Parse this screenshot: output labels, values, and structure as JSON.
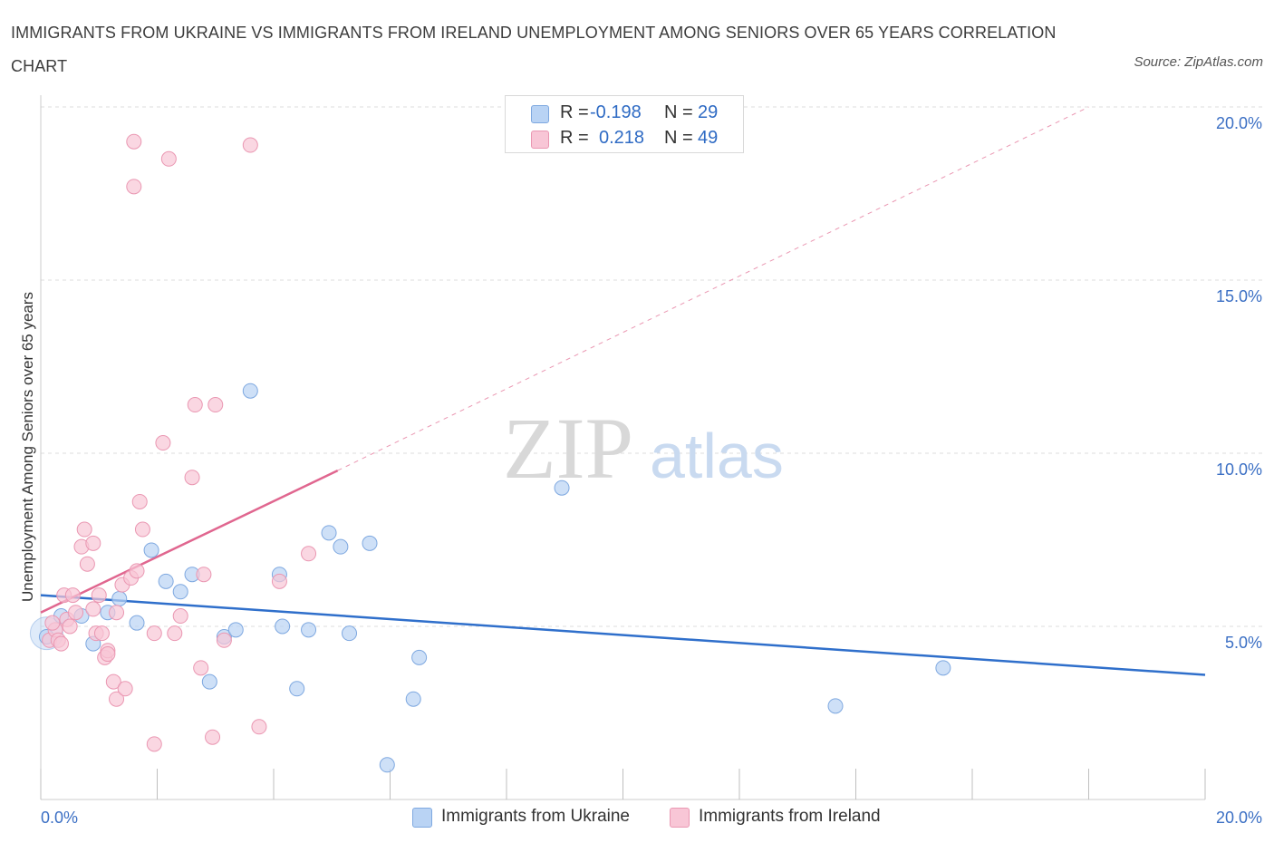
{
  "title": "IMMIGRANTS FROM UKRAINE VS IMMIGRANTS FROM IRELAND UNEMPLOYMENT AMONG SENIORS OVER 65 YEARS CORRELATION CHART",
  "source": "Source: ZipAtlas.com",
  "watermark": {
    "zip": "ZIP",
    "atlas": "atlas"
  },
  "legend": {
    "r_label": "R =",
    "n_label": "N =",
    "ukraine": {
      "r": "-0.198",
      "n": "29"
    },
    "ireland": {
      "r": "0.218",
      "n": "49"
    }
  },
  "colors": {
    "ukraine_fill": "#b9d3f4",
    "ukraine_stroke": "#7ea8e0",
    "ukraine_line": "#2f6fcb",
    "ireland_fill": "#f8c6d6",
    "ireland_stroke": "#ea97b2",
    "ireland_line": "#e0668f",
    "axis_text": "#3b6fc4",
    "grid": "#dddddd"
  },
  "chart_data": {
    "type": "scatter",
    "title": "IMMIGRANTS FROM UKRAINE VS IMMIGRANTS FROM IRELAND UNEMPLOYMENT AMONG SENIORS OVER 65 YEARS CORRELATION CHART",
    "xlabel": "",
    "ylabel": "Unemployment Among Seniors over 65 years",
    "xlim": [
      0,
      20
    ],
    "ylim": [
      0,
      20
    ],
    "x_tick_labels": [
      "0.0%",
      "20.0%"
    ],
    "y_ticks": [
      5,
      10,
      15,
      20
    ],
    "y_tick_labels": [
      "5.0%",
      "10.0%",
      "15.0%",
      "20.0%"
    ],
    "grid": true,
    "series": [
      {
        "name": "Immigrants from Ukraine",
        "points": [
          [
            0.1,
            4.7
          ],
          [
            0.35,
            5.3
          ],
          [
            0.7,
            5.3
          ],
          [
            0.9,
            4.5
          ],
          [
            1.35,
            5.8
          ],
          [
            1.15,
            5.4
          ],
          [
            1.65,
            5.1
          ],
          [
            1.9,
            7.2
          ],
          [
            2.15,
            6.3
          ],
          [
            2.4,
            6.0
          ],
          [
            2.6,
            6.5
          ],
          [
            2.9,
            3.4
          ],
          [
            3.15,
            4.7
          ],
          [
            3.35,
            4.9
          ],
          [
            3.6,
            11.8
          ],
          [
            4.1,
            6.5
          ],
          [
            4.15,
            5.0
          ],
          [
            4.4,
            3.2
          ],
          [
            4.6,
            4.9
          ],
          [
            4.95,
            7.7
          ],
          [
            5.15,
            7.3
          ],
          [
            5.3,
            4.8
          ],
          [
            5.65,
            7.4
          ],
          [
            5.95,
            1.0
          ],
          [
            6.4,
            2.9
          ],
          [
            6.5,
            4.1
          ],
          [
            8.95,
            9.0
          ],
          [
            13.65,
            2.7
          ],
          [
            15.5,
            3.8
          ]
        ],
        "trend": {
          "x": [
            0,
            20
          ],
          "y": [
            5.9,
            3.6
          ]
        }
      },
      {
        "name": "Immigrants from Ireland",
        "points": [
          [
            0.15,
            4.6
          ],
          [
            0.25,
            4.9
          ],
          [
            0.3,
            4.6
          ],
          [
            0.4,
            5.9
          ],
          [
            0.45,
            5.2
          ],
          [
            0.5,
            5.0
          ],
          [
            0.6,
            5.4
          ],
          [
            0.55,
            5.9
          ],
          [
            0.7,
            7.3
          ],
          [
            0.75,
            7.8
          ],
          [
            0.8,
            6.8
          ],
          [
            0.9,
            7.4
          ],
          [
            0.9,
            5.5
          ],
          [
            0.95,
            4.8
          ],
          [
            1.05,
            4.8
          ],
          [
            1.0,
            5.9
          ],
          [
            1.1,
            4.1
          ],
          [
            1.15,
            4.3
          ],
          [
            1.25,
            3.4
          ],
          [
            1.3,
            2.9
          ],
          [
            1.3,
            5.4
          ],
          [
            1.4,
            6.2
          ],
          [
            1.45,
            3.2
          ],
          [
            1.55,
            6.4
          ],
          [
            1.65,
            6.6
          ],
          [
            1.7,
            8.6
          ],
          [
            1.75,
            7.8
          ],
          [
            1.6,
            17.7
          ],
          [
            1.6,
            19.0
          ],
          [
            1.95,
            4.8
          ],
          [
            1.95,
            1.6
          ],
          [
            2.2,
            18.5
          ],
          [
            2.1,
            10.3
          ],
          [
            2.3,
            4.8
          ],
          [
            2.4,
            5.3
          ],
          [
            2.6,
            9.3
          ],
          [
            2.65,
            11.4
          ],
          [
            2.75,
            3.8
          ],
          [
            2.8,
            6.5
          ],
          [
            2.95,
            1.8
          ],
          [
            3.0,
            11.4
          ],
          [
            3.15,
            4.6
          ],
          [
            3.6,
            18.9
          ],
          [
            3.75,
            2.1
          ],
          [
            4.1,
            6.3
          ],
          [
            4.6,
            7.1
          ],
          [
            0.2,
            5.1
          ],
          [
            0.35,
            4.5
          ],
          [
            1.15,
            4.2
          ]
        ],
        "trend": {
          "x": [
            0,
            5.1
          ],
          "y": [
            5.4,
            9.5
          ]
        },
        "trend_extended": {
          "x": [
            5.1,
            18.0
          ],
          "y": [
            9.5,
            20.0
          ]
        }
      }
    ]
  },
  "bottom_legend": [
    {
      "label": "Immigrants from Ukraine"
    },
    {
      "label": "Immigrants from Ireland"
    }
  ]
}
